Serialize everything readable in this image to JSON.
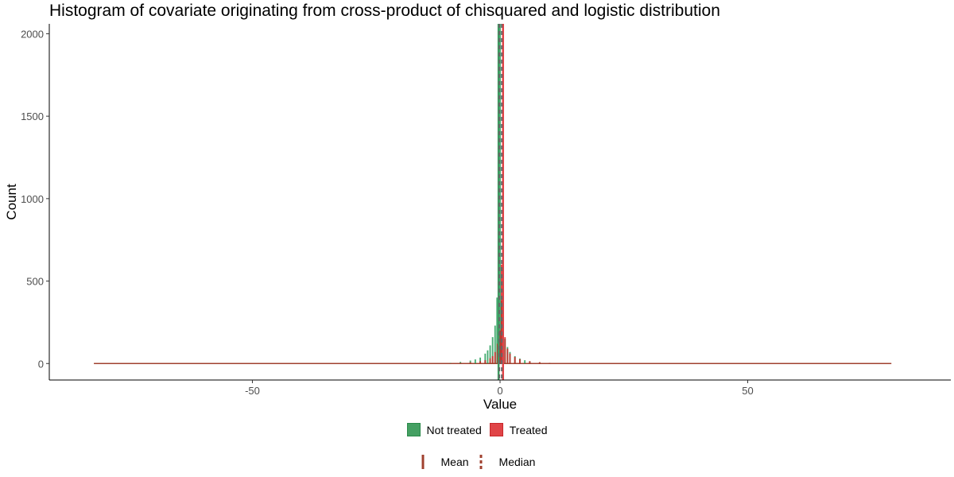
{
  "chart_data": {
    "type": "histogram",
    "title": "Histogram of covariate originating from cross-product of chisquared and logistic distribution",
    "xlabel": "Value",
    "ylabel": "Count",
    "xlim": [
      -91,
      91
    ],
    "ylim": [
      -100,
      2060
    ],
    "x_ticks": [
      -50,
      0,
      50
    ],
    "x_tick_labels": [
      "-50",
      "0",
      "50"
    ],
    "y_ticks": [
      0,
      500,
      1000,
      1500,
      2000
    ],
    "y_tick_labels": [
      "0",
      "500",
      "1000",
      "1500",
      "2000"
    ],
    "data_range": [
      -82,
      79
    ],
    "grid": false,
    "legend_position": "bottom",
    "series": [
      {
        "name": "Not treated",
        "color": "#1a9850",
        "bins": [
          {
            "x": -10,
            "count": 4
          },
          {
            "x": -8,
            "count": 10
          },
          {
            "x": -6,
            "count": 18
          },
          {
            "x": -5,
            "count": 25
          },
          {
            "x": -4,
            "count": 36
          },
          {
            "x": -3,
            "count": 60
          },
          {
            "x": -2.5,
            "count": 80
          },
          {
            "x": -2,
            "count": 110
          },
          {
            "x": -1.5,
            "count": 160
          },
          {
            "x": -1,
            "count": 230
          },
          {
            "x": -0.6,
            "count": 400
          },
          {
            "x": -0.3,
            "count": 600
          },
          {
            "x": 0,
            "count": 2060
          },
          {
            "x": 0.3,
            "count": 380
          },
          {
            "x": 0.6,
            "count": 250
          },
          {
            "x": 1,
            "count": 150
          },
          {
            "x": 1.5,
            "count": 100
          },
          {
            "x": 2,
            "count": 70
          },
          {
            "x": 3,
            "count": 45
          },
          {
            "x": 4,
            "count": 30
          },
          {
            "x": 5,
            "count": 20
          },
          {
            "x": 6,
            "count": 14
          },
          {
            "x": 8,
            "count": 8
          },
          {
            "x": 10,
            "count": 4
          }
        ],
        "mean": -0.3,
        "median": -0.15
      },
      {
        "name": "Treated",
        "color": "#d7191c",
        "bins": [
          {
            "x": -10,
            "count": 2
          },
          {
            "x": -8,
            "count": 4
          },
          {
            "x": -6,
            "count": 8
          },
          {
            "x": -4,
            "count": 14
          },
          {
            "x": -3,
            "count": 20
          },
          {
            "x": -2,
            "count": 32
          },
          {
            "x": -1.5,
            "count": 45
          },
          {
            "x": -1,
            "count": 70
          },
          {
            "x": -0.5,
            "count": 120
          },
          {
            "x": 0,
            "count": 200
          },
          {
            "x": 0.3,
            "count": 600
          },
          {
            "x": 0.6,
            "count": 360
          },
          {
            "x": 1,
            "count": 160
          },
          {
            "x": 1.5,
            "count": 90
          },
          {
            "x": 2,
            "count": 60
          },
          {
            "x": 3,
            "count": 40
          },
          {
            "x": 4,
            "count": 26
          },
          {
            "x": 6,
            "count": 14
          },
          {
            "x": 8,
            "count": 8
          },
          {
            "x": 10,
            "count": 4
          }
        ],
        "mean": 0.6,
        "median": 0.35
      }
    ],
    "legend": {
      "fill": [
        "Not treated",
        "Treated"
      ],
      "lines": [
        "Mean",
        "Median"
      ]
    },
    "line_color": "#a0412f"
  }
}
